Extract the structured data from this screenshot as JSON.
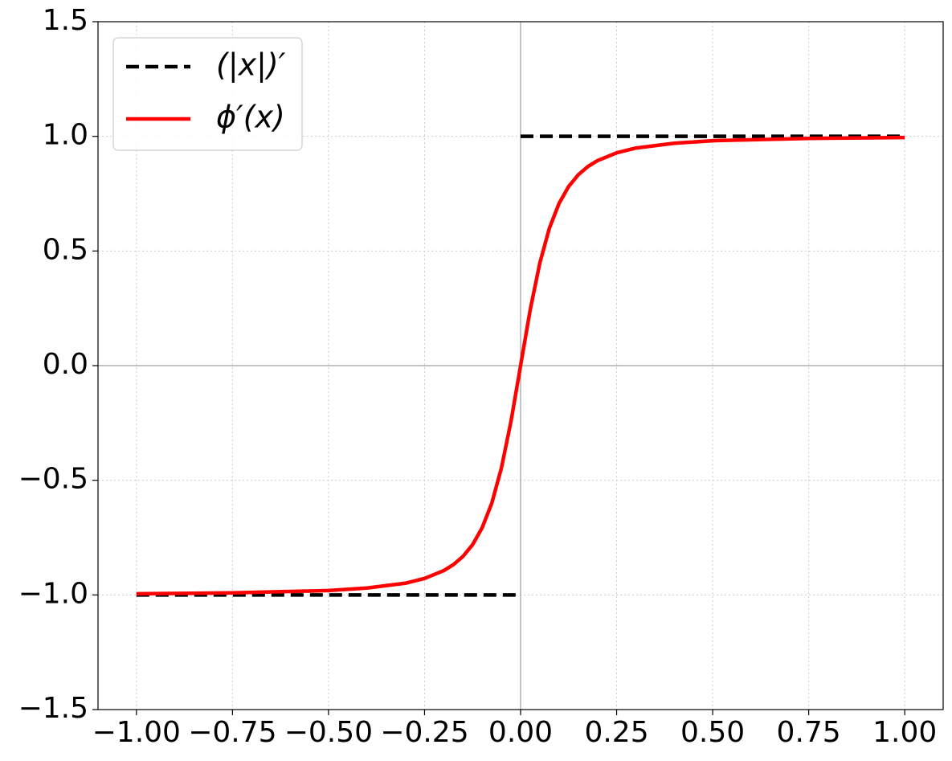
{
  "chart_data": {
    "type": "line",
    "series": [
      {
        "name": "(|x|)′",
        "color": "#000000",
        "linestyle": "dashed",
        "x": [
          -1,
          0,
          0,
          0,
          1
        ],
        "values": [
          -1,
          -1,
          null,
          1,
          1
        ]
      },
      {
        "name": "ϕ′(x)",
        "color": "#ff0000",
        "linestyle": "solid",
        "x": [
          -1,
          -0.75,
          -0.5,
          -0.4,
          -0.3,
          -0.25,
          -0.2,
          -0.175,
          -0.15,
          -0.125,
          -0.1,
          -0.075,
          -0.05,
          -0.025,
          0,
          0.025,
          0.05,
          0.075,
          0.1,
          0.125,
          0.15,
          0.175,
          0.2,
          0.25,
          0.3,
          0.4,
          0.5,
          0.75,
          1
        ],
        "values": [
          -0.995,
          -0.991,
          -0.981,
          -0.97,
          -0.949,
          -0.928,
          -0.894,
          -0.868,
          -0.832,
          -0.781,
          -0.707,
          -0.6,
          -0.447,
          -0.243,
          0,
          0.243,
          0.447,
          0.6,
          0.707,
          0.781,
          0.832,
          0.868,
          0.894,
          0.928,
          0.949,
          0.97,
          0.981,
          0.991,
          0.995
        ]
      }
    ],
    "xlim": [
      -1.1,
      1.1
    ],
    "ylim": [
      -1.5,
      1.5
    ],
    "xticks": [
      {
        "value": -1,
        "label": "−1.00"
      },
      {
        "value": -0.75,
        "label": "−0.75"
      },
      {
        "value": -0.5,
        "label": "−0.50"
      },
      {
        "value": -0.25,
        "label": "−0.25"
      },
      {
        "value": 0,
        "label": "0.00"
      },
      0.25,
      {
        "value": 0.5,
        "label": "0.50"
      },
      0.75,
      {
        "value": 1,
        "label": "1.00"
      }
    ],
    "yticks": [
      {
        "value": -1.5,
        "label": "−1.5"
      },
      {
        "value": -1,
        "label": "−1.0"
      },
      {
        "value": -0.5,
        "label": "−0.5"
      },
      {
        "value": 0,
        "label": "0.0"
      },
      0.5,
      {
        "value": 1,
        "label": "1.0"
      },
      1.5
    ],
    "grid": true,
    "legend": "upper left"
  }
}
